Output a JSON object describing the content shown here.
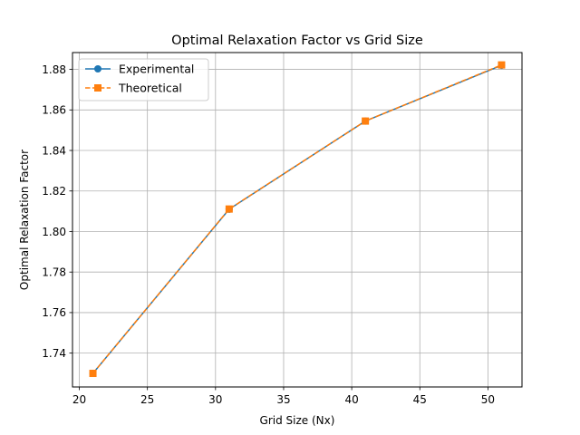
{
  "chart_data": {
    "type": "line",
    "title": "Optimal Relaxation Factor vs Grid Size",
    "xlabel": "Grid Size (Nx)",
    "ylabel": "Optimal Relaxation Factor",
    "xlim": [
      19.5,
      52.5
    ],
    "ylim": [
      1.7233,
      1.8883
    ],
    "xticks": [
      20,
      25,
      30,
      35,
      40,
      45,
      50
    ],
    "yticks": [
      1.74,
      1.76,
      1.78,
      1.8,
      1.82,
      1.84,
      1.86,
      1.88
    ],
    "grid": true,
    "legend_position": "top-left",
    "x": [
      21,
      31,
      41,
      51
    ],
    "series": [
      {
        "name": "Experimental",
        "values": [
          1.73,
          1.811,
          1.8545,
          1.882
        ],
        "color": "#1f77b4",
        "marker": "circle",
        "linestyle": "solid"
      },
      {
        "name": "Theoretical",
        "values": [
          1.73,
          1.8111,
          1.8545,
          1.8822
        ],
        "color": "#ff7f0e",
        "marker": "square",
        "linestyle": "dashed"
      }
    ]
  }
}
